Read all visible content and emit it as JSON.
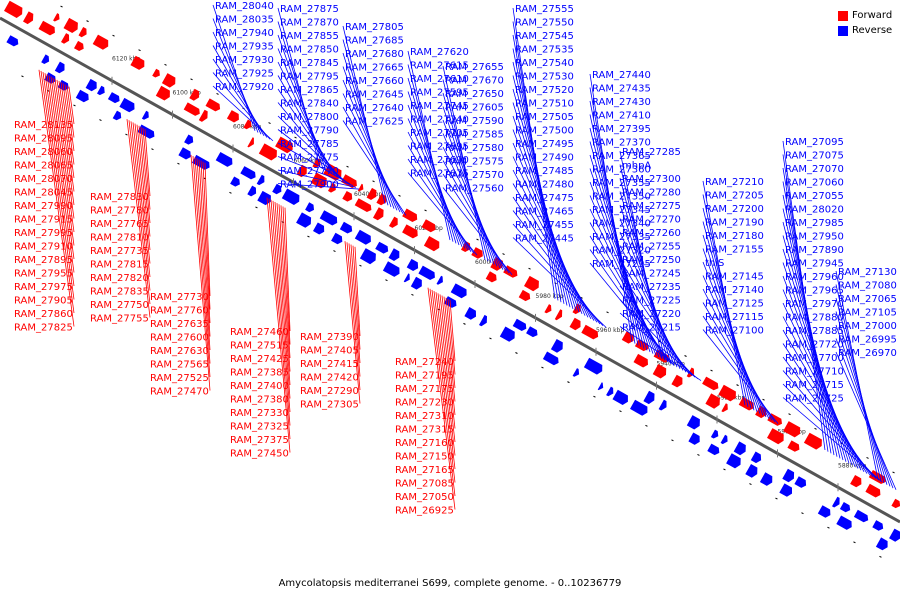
{
  "caption": "Amycolatopsis mediterranei S699, complete genome. - 0..10236779",
  "legend": [
    {
      "label": "Forward",
      "color": "#ff0000"
    },
    {
      "label": "Reverse",
      "color": "#0000ff"
    }
  ],
  "colors": {
    "forward": "#ff0000",
    "reverse": "#0000ff",
    "axis": "#555555"
  },
  "scale_labels": [
    "6120 kbp",
    "6100 kbp",
    "6080 kbp",
    "6060 kbp",
    "6040 kbp",
    "6020 kbp",
    "6000 kbp",
    "5980 kbp",
    "5960 kbp",
    "5940 kbp",
    "5920 kbp",
    "5900 kbp",
    "5880 kbp"
  ],
  "genes": [
    {
      "n": "RAM_28040",
      "s": "r"
    },
    {
      "n": "RAM_28035",
      "s": "r"
    },
    {
      "n": "RAM_27940",
      "s": "r"
    },
    {
      "n": "RAM_27935",
      "s": "r"
    },
    {
      "n": "RAM_27930",
      "s": "r"
    },
    {
      "n": "RAM_27925",
      "s": "r"
    },
    {
      "n": "RAM_27920",
      "s": "r"
    },
    {
      "n": "RAM_27875",
      "s": "r"
    },
    {
      "n": "RAM_27870",
      "s": "r"
    },
    {
      "n": "RAM_27855",
      "s": "r"
    },
    {
      "n": "RAM_27850",
      "s": "r"
    },
    {
      "n": "RAM_27845",
      "s": "r"
    },
    {
      "n": "RAM_27795",
      "s": "r"
    },
    {
      "n": "RAM_27865",
      "s": "r"
    },
    {
      "n": "RAM_27840",
      "s": "r"
    },
    {
      "n": "RAM_27800",
      "s": "r"
    },
    {
      "n": "RAM_27790",
      "s": "r"
    },
    {
      "n": "RAM_27785",
      "s": "r"
    },
    {
      "n": "RAM_27775",
      "s": "r"
    },
    {
      "n": "RAM_27770",
      "s": "r"
    },
    {
      "n": "RAM_27900",
      "s": "r"
    },
    {
      "n": "RAM_27805",
      "s": "r"
    },
    {
      "n": "RAM_27685",
      "s": "r"
    },
    {
      "n": "RAM_27680",
      "s": "r"
    },
    {
      "n": "RAM_27665",
      "s": "r"
    },
    {
      "n": "RAM_27660",
      "s": "r"
    },
    {
      "n": "RAM_27645",
      "s": "r"
    },
    {
      "n": "RAM_27640",
      "s": "r"
    },
    {
      "n": "RAM_27625",
      "s": "r"
    },
    {
      "n": "RAM_27620",
      "s": "r"
    },
    {
      "n": "RAM_27615",
      "s": "r"
    },
    {
      "n": "RAM_27610",
      "s": "r"
    },
    {
      "n": "RAM_27595",
      "s": "r"
    },
    {
      "n": "RAM_27745",
      "s": "r"
    },
    {
      "n": "RAM_27740",
      "s": "r"
    },
    {
      "n": "RAM_27705",
      "s": "r"
    },
    {
      "n": "RAM_27695",
      "s": "r"
    },
    {
      "n": "RAM_27690",
      "s": "r"
    },
    {
      "n": "RAM_27675",
      "s": "r"
    },
    {
      "n": "RAM_27655",
      "s": "r"
    },
    {
      "n": "RAM_27670",
      "s": "r"
    },
    {
      "n": "RAM_27650",
      "s": "r"
    },
    {
      "n": "RAM_27605",
      "s": "r"
    },
    {
      "n": "RAM_27590",
      "s": "r"
    },
    {
      "n": "RAM_27585",
      "s": "r"
    },
    {
      "n": "RAM_27580",
      "s": "r"
    },
    {
      "n": "RAM_27575",
      "s": "r"
    },
    {
      "n": "RAM_27570",
      "s": "r"
    },
    {
      "n": "RAM_27560",
      "s": "r"
    },
    {
      "n": "RAM_27555",
      "s": "r"
    },
    {
      "n": "RAM_27550",
      "s": "r"
    },
    {
      "n": "RAM_27545",
      "s": "r"
    },
    {
      "n": "RAM_27535",
      "s": "r"
    },
    {
      "n": "RAM_27540",
      "s": "r"
    },
    {
      "n": "RAM_27530",
      "s": "r"
    },
    {
      "n": "RAM_27520",
      "s": "r"
    },
    {
      "n": "RAM_27510",
      "s": "r"
    },
    {
      "n": "RAM_27505",
      "s": "r"
    },
    {
      "n": "RAM_27500",
      "s": "r"
    },
    {
      "n": "RAM_27495",
      "s": "r"
    },
    {
      "n": "RAM_27490",
      "s": "r"
    },
    {
      "n": "RAM_27485",
      "s": "r"
    },
    {
      "n": "RAM_27480",
      "s": "r"
    },
    {
      "n": "RAM_27475",
      "s": "r"
    },
    {
      "n": "RAM_27465",
      "s": "r"
    },
    {
      "n": "RAM_27455",
      "s": "r"
    },
    {
      "n": "RAM_27445",
      "s": "r"
    },
    {
      "n": "RAM_27440",
      "s": "r"
    },
    {
      "n": "RAM_27435",
      "s": "r"
    },
    {
      "n": "RAM_27430",
      "s": "r"
    },
    {
      "n": "RAM_27410",
      "s": "r"
    },
    {
      "n": "RAM_27395",
      "s": "r"
    },
    {
      "n": "RAM_27370",
      "s": "r"
    },
    {
      "n": "RAM_27365",
      "s": "r"
    },
    {
      "n": "RAM_27360",
      "s": "r"
    },
    {
      "n": "RAM_27355",
      "s": "r"
    },
    {
      "n": "RAM_27350",
      "s": "r"
    },
    {
      "n": "RAM_27345",
      "s": "r"
    },
    {
      "n": "RAM_27340",
      "s": "r"
    },
    {
      "n": "RAM_27335",
      "s": "r"
    },
    {
      "n": "RAM_27320",
      "s": "r"
    },
    {
      "n": "RAM_27295",
      "s": "r"
    },
    {
      "n": "RAM_27285",
      "s": "r"
    },
    {
      "n": "mhpA",
      "s": "r"
    },
    {
      "n": "RAM_27300",
      "s": "r"
    },
    {
      "n": "RAM_27280",
      "s": "r"
    },
    {
      "n": "RAM_27275",
      "s": "r"
    },
    {
      "n": "RAM_27270",
      "s": "r"
    },
    {
      "n": "RAM_27260",
      "s": "r"
    },
    {
      "n": "RAM_27255",
      "s": "r"
    },
    {
      "n": "RAM_27250",
      "s": "r"
    },
    {
      "n": "RAM_27245",
      "s": "r"
    },
    {
      "n": "RAM_27235",
      "s": "r"
    },
    {
      "n": "RAM_27225",
      "s": "r"
    },
    {
      "n": "RAM_27220",
      "s": "r"
    },
    {
      "n": "RAM_27215",
      "s": "r"
    },
    {
      "n": "RAM_27210",
      "s": "r"
    },
    {
      "n": "RAM_27205",
      "s": "r"
    },
    {
      "n": "RAM_27200",
      "s": "r"
    },
    {
      "n": "RAM_27190",
      "s": "r"
    },
    {
      "n": "RAM_27180",
      "s": "r"
    },
    {
      "n": "RAM_27155",
      "s": "r"
    },
    {
      "n": "thiS",
      "s": "r"
    },
    {
      "n": "RAM_27145",
      "s": "r"
    },
    {
      "n": "RAM_27140",
      "s": "r"
    },
    {
      "n": "RAM_27125",
      "s": "r"
    },
    {
      "n": "RAM_27115",
      "s": "r"
    },
    {
      "n": "RAM_27100",
      "s": "r"
    },
    {
      "n": "RAM_27095",
      "s": "r"
    },
    {
      "n": "RAM_27075",
      "s": "r"
    },
    {
      "n": "RAM_27070",
      "s": "r"
    },
    {
      "n": "RAM_27060",
      "s": "r"
    },
    {
      "n": "RAM_27055",
      "s": "r"
    },
    {
      "n": "RAM_28135",
      "s": "f"
    },
    {
      "n": "RAM_28095",
      "s": "f"
    },
    {
      "n": "RAM_28060",
      "s": "f"
    },
    {
      "n": "RAM_28065",
      "s": "f"
    },
    {
      "n": "RAM_28070",
      "s": "f"
    },
    {
      "n": "RAM_28045",
      "s": "f"
    },
    {
      "n": "RAM_27990",
      "s": "f"
    },
    {
      "n": "RAM_27915",
      "s": "f"
    },
    {
      "n": "RAM_27995",
      "s": "f"
    },
    {
      "n": "RAM_27910",
      "s": "f"
    },
    {
      "n": "RAM_27895",
      "s": "f"
    },
    {
      "n": "RAM_27955",
      "s": "f"
    },
    {
      "n": "RAM_27975",
      "s": "f"
    },
    {
      "n": "RAM_27905",
      "s": "f"
    },
    {
      "n": "RAM_27860",
      "s": "f"
    },
    {
      "n": "RAM_27825",
      "s": "f"
    },
    {
      "n": "RAM_27830",
      "s": "f"
    },
    {
      "n": "RAM_27780",
      "s": "f"
    },
    {
      "n": "RAM_27765",
      "s": "f"
    },
    {
      "n": "RAM_27810",
      "s": "f"
    },
    {
      "n": "RAM_27735",
      "s": "f"
    },
    {
      "n": "RAM_27815",
      "s": "f"
    },
    {
      "n": "RAM_27820",
      "s": "f"
    },
    {
      "n": "RAM_27835",
      "s": "f"
    },
    {
      "n": "RAM_27750",
      "s": "f"
    },
    {
      "n": "RAM_27755",
      "s": "f"
    },
    {
      "n": "RAM_27730",
      "s": "f"
    },
    {
      "n": "RAM_27760",
      "s": "f"
    },
    {
      "n": "RAM_27635",
      "s": "f"
    },
    {
      "n": "RAM_27600",
      "s": "f"
    },
    {
      "n": "RAM_27630",
      "s": "f"
    },
    {
      "n": "RAM_27565",
      "s": "f"
    },
    {
      "n": "RAM_27525",
      "s": "f"
    },
    {
      "n": "RAM_27470",
      "s": "f"
    },
    {
      "n": "RAM_27460",
      "s": "f"
    },
    {
      "n": "RAM_27515",
      "s": "f"
    },
    {
      "n": "RAM_27425",
      "s": "f"
    },
    {
      "n": "RAM_27385",
      "s": "f"
    },
    {
      "n": "RAM_27400",
      "s": "f"
    },
    {
      "n": "RAM_27380",
      "s": "f"
    },
    {
      "n": "RAM_27330",
      "s": "f"
    },
    {
      "n": "RAM_27325",
      "s": "f"
    },
    {
      "n": "RAM_27375",
      "s": "f"
    },
    {
      "n": "RAM_27450",
      "s": "f"
    },
    {
      "n": "RAM_27390",
      "s": "f"
    },
    {
      "n": "RAM_27405",
      "s": "f"
    },
    {
      "n": "RAM_27415",
      "s": "f"
    },
    {
      "n": "RAM_27420",
      "s": "f"
    },
    {
      "n": "RAM_27290",
      "s": "f"
    },
    {
      "n": "RAM_27305",
      "s": "f"
    },
    {
      "n": "RAM_27240",
      "s": "f"
    },
    {
      "n": "RAM_27195",
      "s": "f"
    },
    {
      "n": "RAM_27175",
      "s": "f"
    },
    {
      "n": "RAM_27230",
      "s": "f"
    },
    {
      "n": "RAM_27310",
      "s": "f"
    },
    {
      "n": "RAM_27315",
      "s": "f"
    },
    {
      "n": "RAM_27160",
      "s": "f"
    },
    {
      "n": "RAM_27150",
      "s": "f"
    },
    {
      "n": "RAM_27165",
      "s": "f"
    },
    {
      "n": "RAM_27085",
      "s": "f"
    },
    {
      "n": "RAM_27050",
      "s": "f"
    },
    {
      "n": "RAM_26925",
      "s": "f"
    },
    {
      "n": "RAM_28020",
      "s": "r"
    },
    {
      "n": "RAM_27985",
      "s": "r"
    },
    {
      "n": "RAM_27950",
      "s": "r"
    },
    {
      "n": "RAM_27890",
      "s": "r"
    },
    {
      "n": "RAM_27945",
      "s": "r"
    },
    {
      "n": "RAM_27960",
      "s": "r"
    },
    {
      "n": "RAM_27965",
      "s": "r"
    },
    {
      "n": "RAM_27970",
      "s": "r"
    },
    {
      "n": "RAM_27880",
      "s": "r"
    },
    {
      "n": "RAM_27885",
      "s": "r"
    },
    {
      "n": "RAM_27720",
      "s": "r"
    },
    {
      "n": "RAM_27700",
      "s": "r"
    },
    {
      "n": "RAM_27710",
      "s": "r"
    },
    {
      "n": "RAM_27715",
      "s": "r"
    },
    {
      "n": "RAM_27725",
      "s": "r"
    },
    {
      "n": "RAM_27130",
      "s": "r"
    },
    {
      "n": "RAM_27080",
      "s": "r"
    },
    {
      "n": "RAM_27065",
      "s": "r"
    },
    {
      "n": "RAM_27105",
      "s": "r"
    },
    {
      "n": "RAM_27000",
      "s": "r"
    },
    {
      "n": "RAM_26995",
      "s": "r"
    },
    {
      "n": "RAM_26970",
      "s": "r"
    }
  ]
}
